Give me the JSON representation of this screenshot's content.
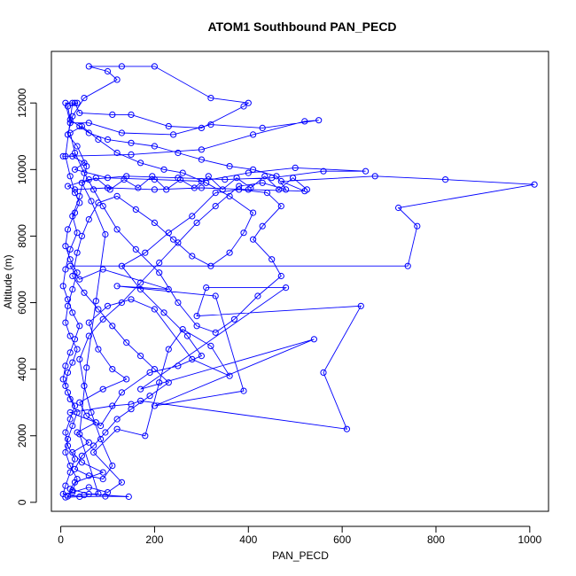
{
  "chart_data": {
    "type": "scatter",
    "title": "ATOM1 Southbound PAN_PECD",
    "xlabel": "PAN_PECD",
    "ylabel": "Altitude (m)",
    "xlim": [
      -20,
      1040
    ],
    "ylim": [
      -270,
      13550
    ],
    "x_ticks": [
      0,
      200,
      400,
      600,
      800,
      1000
    ],
    "y_ticks": [
      0,
      2000,
      4000,
      6000,
      8000,
      10000,
      12000
    ],
    "x_tick_labels": [
      "0",
      "200",
      "400",
      "600",
      "800",
      "1000"
    ],
    "y_tick_labels": [
      "0",
      "2000",
      "4000",
      "6000",
      "8000",
      "10000",
      "12000"
    ],
    "grid": false,
    "legend": "none",
    "style": "points connected by lines (type='b')",
    "colors": {
      "series": "#0000FF",
      "frame": "#000000",
      "background": "#FFFFFF"
    },
    "series": [
      {
        "points": [
          [
            10,
            150
          ],
          [
            40,
            170
          ],
          [
            95,
            180
          ],
          [
            145,
            170
          ],
          [
            60,
            250
          ],
          [
            20,
            400
          ],
          [
            30,
            600
          ],
          [
            90,
            900
          ],
          [
            45,
            1200
          ],
          [
            25,
            1500
          ],
          [
            60,
            1800
          ],
          [
            35,
            2100
          ],
          [
            75,
            2400
          ],
          [
            20,
            2700
          ],
          [
            110,
            2900
          ],
          [
            150,
            2950
          ],
          [
            170,
            3050
          ],
          [
            610,
            2200
          ],
          [
            560,
            3900
          ],
          [
            640,
            5900
          ],
          [
            290,
            5600
          ],
          [
            310,
            6450
          ],
          [
            480,
            6450
          ],
          [
            170,
            3400
          ],
          [
            540,
            4900
          ],
          [
            200,
            2900
          ],
          [
            390,
            3350
          ],
          [
            330,
            6200
          ],
          [
            120,
            6500
          ],
          [
            230,
            6400
          ],
          [
            90,
            7000
          ],
          [
            40,
            6700
          ],
          [
            20,
            7100
          ],
          [
            740,
            7100
          ],
          [
            760,
            8300
          ],
          [
            720,
            8850
          ],
          [
            1010,
            9550
          ],
          [
            820,
            9700
          ],
          [
            670,
            9800
          ],
          [
            470,
            9650
          ],
          [
            520,
            9350
          ],
          [
            400,
            9400
          ],
          [
            300,
            9450
          ],
          [
            200,
            9400
          ],
          [
            100,
            9450
          ],
          [
            30,
            9400
          ],
          [
            15,
            9500
          ],
          [
            60,
            9700
          ],
          [
            140,
            9800
          ],
          [
            250,
            9750
          ],
          [
            350,
            9700
          ],
          [
            450,
            9750
          ],
          [
            560,
            9950
          ],
          [
            650,
            9950
          ],
          [
            500,
            10050
          ],
          [
            400,
            9900
          ],
          [
            300,
            9650
          ],
          [
            200,
            9700
          ],
          [
            100,
            9750
          ],
          [
            30,
            10000
          ],
          [
            50,
            10200
          ],
          [
            25,
            10400
          ],
          [
            5,
            10400
          ],
          [
            150,
            10450
          ],
          [
            300,
            10600
          ],
          [
            410,
            11050
          ],
          [
            520,
            11450
          ],
          [
            550,
            11480
          ],
          [
            430,
            11250
          ],
          [
            320,
            11350
          ],
          [
            240,
            11050
          ],
          [
            130,
            11100
          ],
          [
            60,
            11400
          ],
          [
            20,
            11400
          ],
          [
            10,
            12000
          ],
          [
            30,
            12000
          ],
          [
            40,
            11700
          ],
          [
            110,
            11650
          ],
          [
            150,
            11650
          ],
          [
            230,
            11300
          ],
          [
            300,
            11250
          ],
          [
            390,
            11900
          ],
          [
            400,
            12000
          ],
          [
            320,
            12150
          ],
          [
            200,
            13100
          ],
          [
            130,
            13100
          ],
          [
            60,
            13100
          ],
          [
            100,
            12950
          ],
          [
            120,
            12700
          ],
          [
            50,
            12150
          ],
          [
            25,
            11600
          ],
          [
            15,
            11050
          ],
          [
            35,
            10700
          ],
          [
            55,
            10100
          ],
          [
            40,
            9200
          ],
          [
            25,
            8600
          ],
          [
            35,
            8100
          ],
          [
            20,
            7600
          ],
          [
            10,
            7000
          ],
          [
            5,
            6500
          ],
          [
            15,
            6100
          ],
          [
            25,
            5700
          ],
          [
            40,
            5300
          ],
          [
            30,
            4900
          ],
          [
            20,
            4500
          ],
          [
            10,
            4100
          ],
          [
            5,
            3700
          ],
          [
            15,
            3300
          ],
          [
            30,
            2900
          ],
          [
            20,
            2500
          ],
          [
            10,
            2100
          ],
          [
            15,
            1700
          ],
          [
            30,
            1300
          ],
          [
            20,
            900
          ],
          [
            10,
            500
          ],
          [
            5,
            250
          ],
          [
            25,
            300
          ],
          [
            60,
            450
          ],
          [
            100,
            300
          ],
          [
            130,
            600
          ],
          [
            70,
            1500
          ],
          [
            120,
            2200
          ],
          [
            180,
            2000
          ],
          [
            210,
            3600
          ],
          [
            230,
            4600
          ],
          [
            260,
            5200
          ],
          [
            320,
            4700
          ],
          [
            360,
            3800
          ],
          [
            280,
            4300
          ],
          [
            200,
            5800
          ],
          [
            150,
            6100
          ],
          [
            100,
            5900
          ],
          [
            60,
            5400
          ],
          [
            80,
            4600
          ],
          [
            110,
            4000
          ],
          [
            140,
            3700
          ],
          [
            90,
            3400
          ],
          [
            40,
            3000
          ],
          [
            55,
            2600
          ],
          [
            85,
            2300
          ],
          [
            130,
            3300
          ],
          [
            190,
            3900
          ],
          [
            250,
            4100
          ],
          [
            300,
            4400
          ],
          [
            270,
            5000
          ],
          [
            220,
            5700
          ],
          [
            170,
            6400
          ],
          [
            130,
            7100
          ],
          [
            180,
            7500
          ],
          [
            230,
            8100
          ],
          [
            280,
            8600
          ],
          [
            330,
            9300
          ],
          [
            380,
            9400
          ],
          [
            440,
            9300
          ],
          [
            470,
            8900
          ],
          [
            430,
            8300
          ],
          [
            410,
            7900
          ],
          [
            450,
            7300
          ],
          [
            470,
            6800
          ],
          [
            420,
            6200
          ],
          [
            370,
            5500
          ],
          [
            330,
            5100
          ],
          [
            290,
            5300
          ],
          [
            250,
            6000
          ],
          [
            210,
            6900
          ],
          [
            160,
            7600
          ],
          [
            120,
            8200
          ],
          [
            90,
            8900
          ],
          [
            70,
            9400
          ],
          [
            50,
            9900
          ],
          [
            30,
            10500
          ],
          [
            20,
            11100
          ],
          [
            45,
            11300
          ],
          [
            80,
            10900
          ],
          [
            120,
            10500
          ],
          [
            170,
            10200
          ],
          [
            220,
            10000
          ],
          [
            260,
            9900
          ],
          [
            310,
            9600
          ],
          [
            360,
            9200
          ],
          [
            410,
            8700
          ],
          [
            390,
            8100
          ],
          [
            360,
            7500
          ],
          [
            320,
            7100
          ],
          [
            280,
            7400
          ],
          [
            240,
            7900
          ],
          [
            200,
            8400
          ],
          [
            160,
            8800
          ],
          [
            120,
            9200
          ],
          [
            80,
            9000
          ],
          [
            60,
            8500
          ],
          [
            45,
            8000
          ],
          [
            35,
            7500
          ],
          [
            25,
            6800
          ],
          [
            50,
            6300
          ],
          [
            80,
            5800
          ],
          [
            110,
            5300
          ],
          [
            140,
            4800
          ],
          [
            170,
            4400
          ],
          [
            200,
            4000
          ],
          [
            230,
            3600
          ],
          [
            190,
            3200
          ],
          [
            150,
            2800
          ],
          [
            120,
            2500
          ],
          [
            95,
            2100
          ],
          [
            70,
            1700
          ],
          [
            45,
            1400
          ],
          [
            30,
            1000
          ],
          [
            60,
            800
          ],
          [
            90,
            700
          ],
          [
            110,
            1100
          ],
          [
            85,
            1900
          ],
          [
            65,
            2700
          ],
          [
            50,
            3500
          ],
          [
            40,
            4300
          ],
          [
            60,
            5000
          ],
          [
            90,
            5500
          ],
          [
            130,
            6000
          ],
          [
            170,
            6600
          ],
          [
            210,
            7200
          ],
          [
            250,
            7800
          ],
          [
            290,
            8400
          ],
          [
            330,
            8900
          ],
          [
            380,
            9500
          ],
          [
            430,
            9600
          ],
          [
            480,
            9400
          ],
          [
            460,
            9800
          ],
          [
            410,
            10000
          ],
          [
            360,
            10100
          ],
          [
            300,
            10300
          ],
          [
            250,
            10500
          ],
          [
            200,
            10700
          ],
          [
            150,
            10800
          ],
          [
            100,
            10900
          ],
          [
            60,
            11100
          ],
          [
            40,
            11300
          ],
          [
            20,
            11500
          ],
          [
            15,
            11900
          ],
          [
            35,
            12000
          ],
          [
            25,
            12000
          ],
          [
            10,
            10400
          ],
          [
            20,
            9800
          ],
          [
            30,
            9300
          ],
          [
            40,
            9000
          ],
          [
            30,
            8700
          ],
          [
            15,
            8200
          ],
          [
            10,
            7700
          ],
          [
            20,
            7300
          ],
          [
            35,
            6900
          ],
          [
            25,
            6400
          ],
          [
            15,
            5900
          ],
          [
            10,
            5400
          ],
          [
            20,
            5000
          ],
          [
            35,
            4600
          ],
          [
            25,
            4200
          ],
          [
            15,
            3900
          ],
          [
            10,
            3500
          ],
          [
            20,
            3100
          ],
          [
            35,
            2700
          ],
          [
            25,
            2300
          ],
          [
            15,
            1900
          ],
          [
            10,
            1500
          ],
          [
            20,
            1100
          ],
          [
            35,
            700
          ],
          [
            25,
            350
          ],
          [
            15,
            180
          ],
          [
            50,
            220
          ],
          [
            80,
            260
          ],
          [
            40,
            2050
          ],
          [
            55,
            4050
          ],
          [
            75,
            6050
          ],
          [
            95,
            8050
          ],
          [
            65,
            9050
          ],
          [
            45,
            9600
          ],
          [
            75,
            9750
          ],
          [
            105,
            9400
          ],
          [
            135,
            9700
          ],
          [
            165,
            9450
          ],
          [
            195,
            9800
          ],
          [
            225,
            9400
          ],
          [
            255,
            9700
          ],
          [
            285,
            9450
          ],
          [
            315,
            9800
          ],
          [
            345,
            9400
          ],
          [
            375,
            9750
          ],
          [
            405,
            9450
          ],
          [
            435,
            9800
          ],
          [
            465,
            9400
          ],
          [
            495,
            9750
          ],
          [
            525,
            9400
          ]
        ]
      }
    ]
  }
}
